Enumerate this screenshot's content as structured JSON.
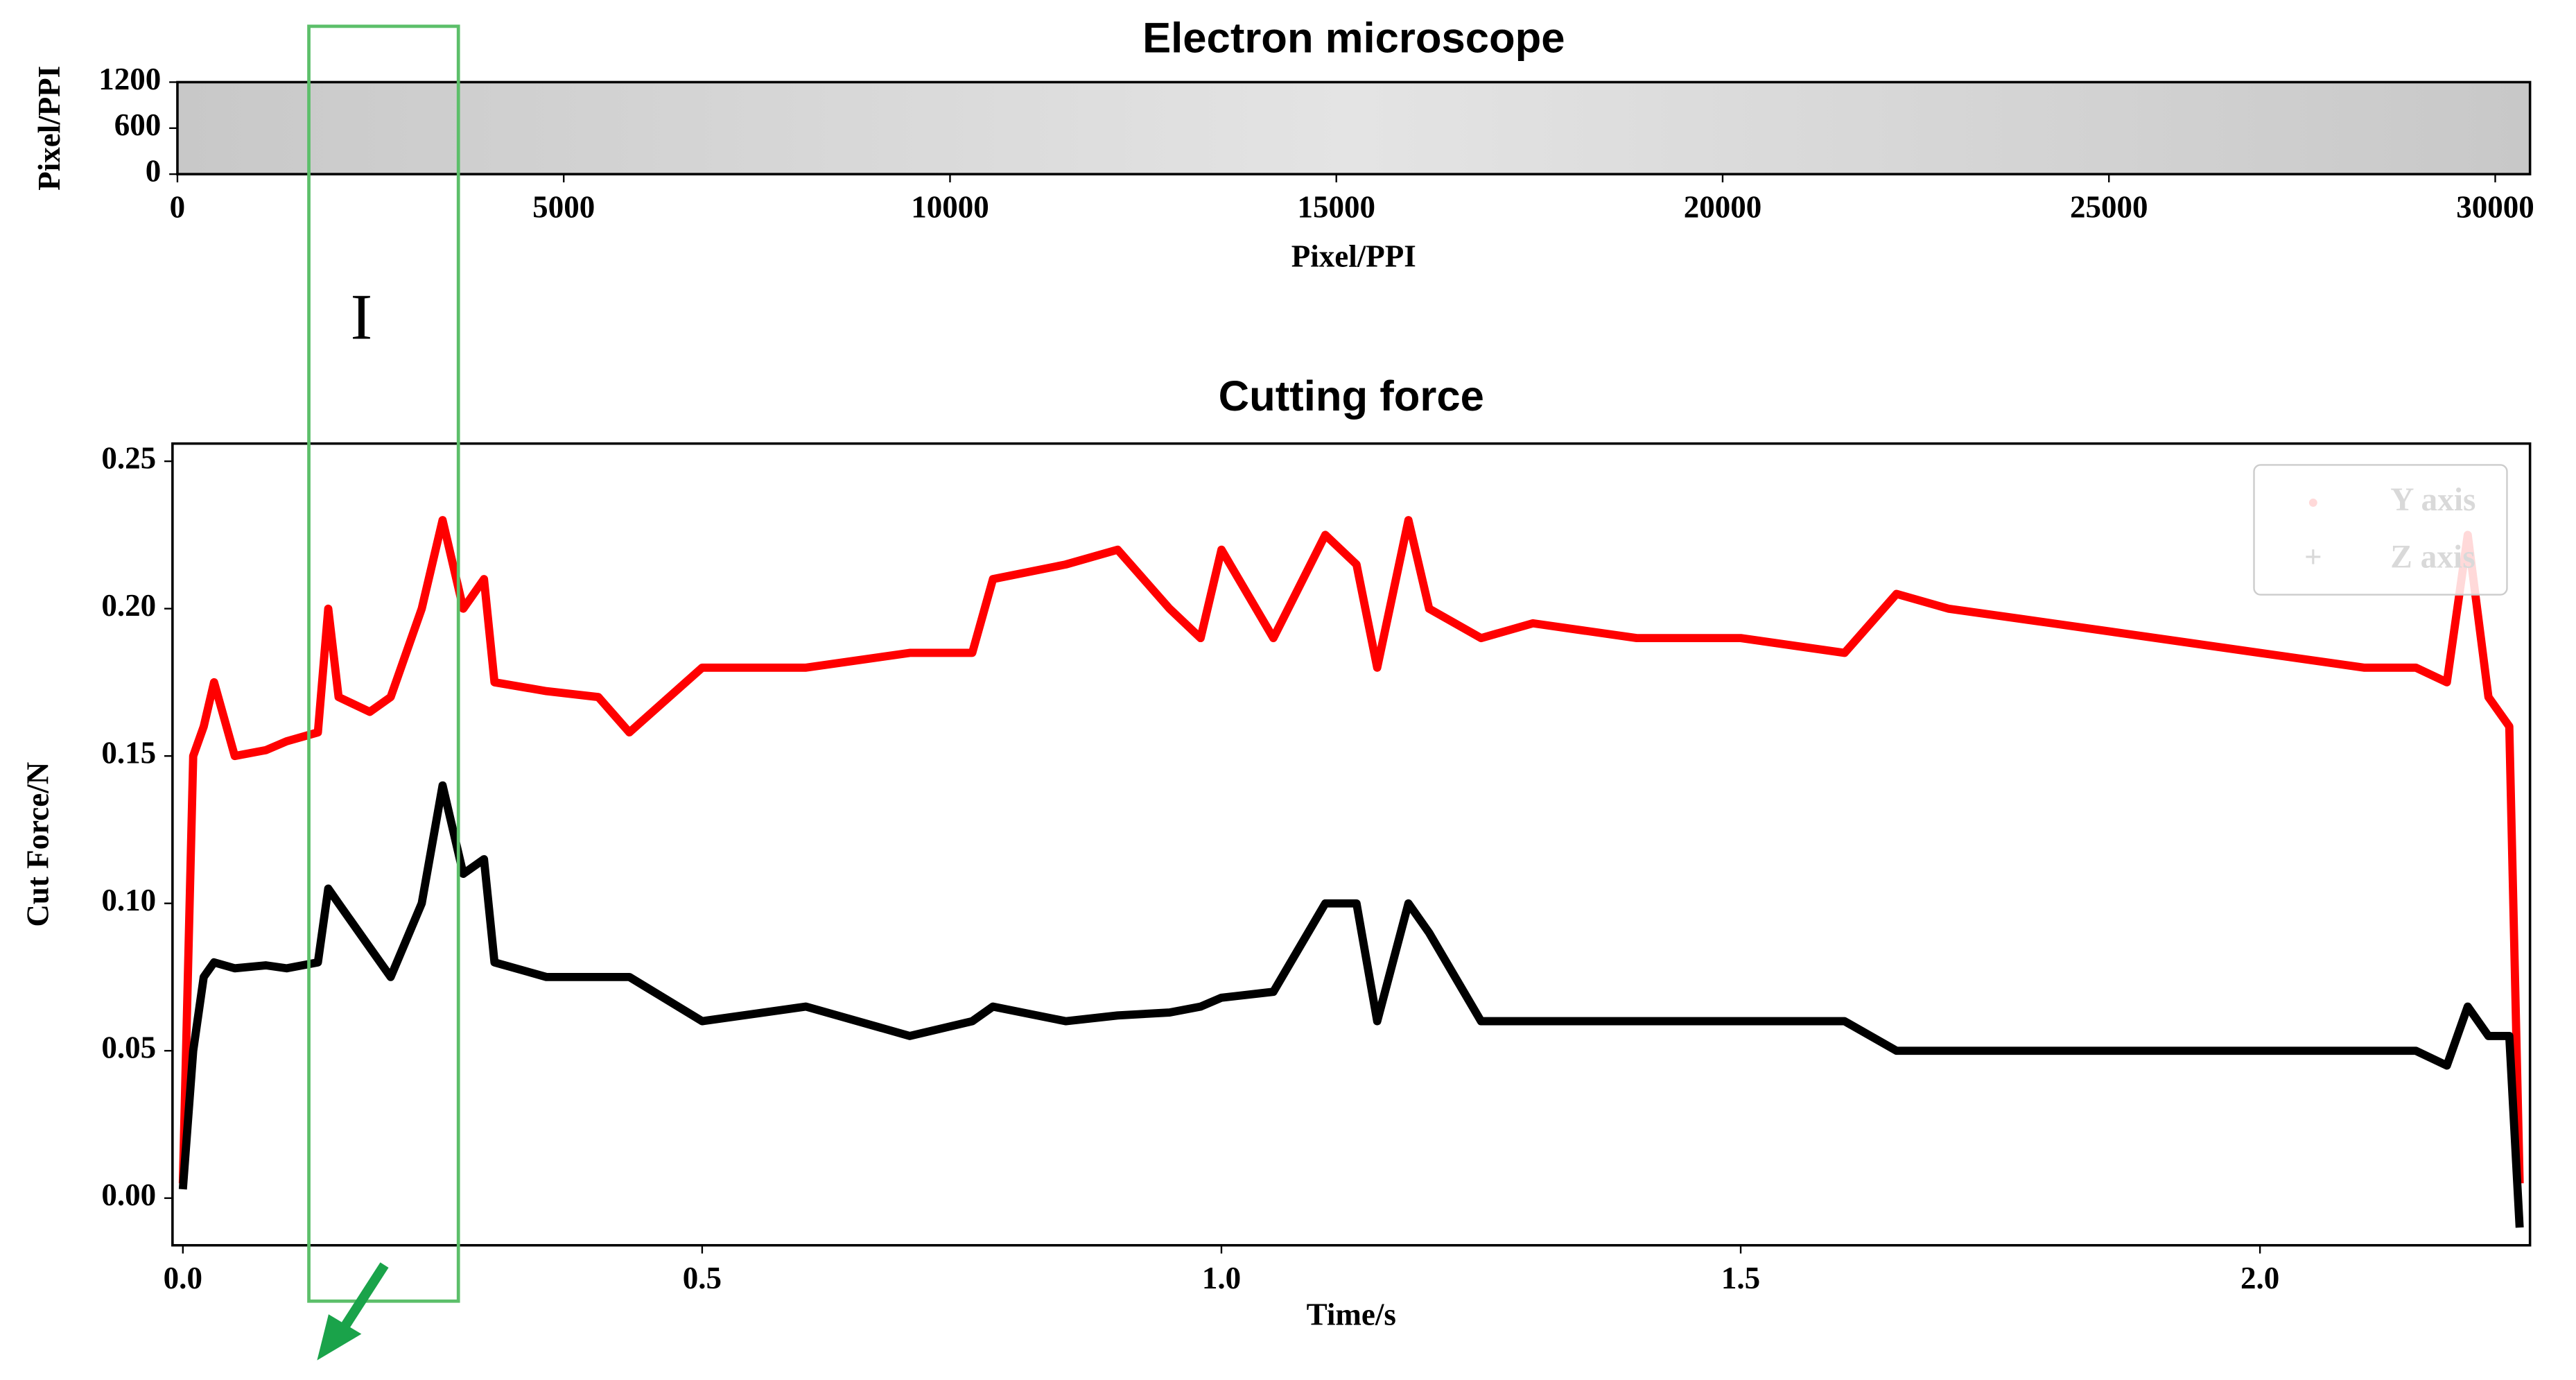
{
  "chart_data": [
    {
      "type": "image",
      "title": "Electron microscope",
      "xlabel": "Pixel/PPI",
      "ylabel": "Pixel/PPI",
      "xlim": [
        0,
        30450
      ],
      "xticks": [
        0,
        5000,
        10000,
        15000,
        20000,
        25000,
        30000
      ],
      "ylim": [
        0,
        1200
      ],
      "yticks": [
        0,
        600,
        1200
      ]
    },
    {
      "type": "line",
      "title": "Cutting force",
      "xlabel": "Time/s",
      "ylabel": "Cut Force/N",
      "annotations": [
        "I"
      ],
      "legend": "upper right",
      "x": [
        0,
        0.01,
        0.02,
        0.03,
        0.05,
        0.08,
        0.1,
        0.13,
        0.14,
        0.15,
        0.18,
        0.2,
        0.23,
        0.25,
        0.27,
        0.29,
        0.3,
        0.35,
        0.4,
        0.43,
        0.5,
        0.6,
        0.7,
        0.76,
        0.78,
        0.85,
        0.9,
        0.95,
        0.98,
        1.0,
        1.05,
        1.1,
        1.13,
        1.15,
        1.18,
        1.2,
        1.25,
        1.3,
        1.4,
        1.5,
        1.6,
        1.65,
        1.7,
        1.8,
        1.9,
        2.0,
        2.1,
        2.15,
        2.18,
        2.2,
        2.22,
        2.24,
        2.25
      ],
      "series": [
        {
          "name": "Y axis",
          "color": "#ff0000",
          "values": [
            0.005,
            0.15,
            0.16,
            0.175,
            0.15,
            0.152,
            0.155,
            0.158,
            0.2,
            0.17,
            0.165,
            0.17,
            0.2,
            0.23,
            0.2,
            0.21,
            0.175,
            0.172,
            0.17,
            0.158,
            0.18,
            0.18,
            0.185,
            0.185,
            0.21,
            0.215,
            0.22,
            0.2,
            0.19,
            0.22,
            0.19,
            0.225,
            0.215,
            0.18,
            0.23,
            0.2,
            0.19,
            0.195,
            0.19,
            0.19,
            0.185,
            0.205,
            0.2,
            0.195,
            0.19,
            0.185,
            0.18,
            0.18,
            0.175,
            0.225,
            0.17,
            0.16,
            0.005
          ]
        },
        {
          "name": "Z axis",
          "color": "#000000",
          "values": [
            0.003,
            0.05,
            0.075,
            0.08,
            0.078,
            0.079,
            0.078,
            0.08,
            0.105,
            0.1,
            0.085,
            0.075,
            0.1,
            0.14,
            0.11,
            0.115,
            0.08,
            0.075,
            0.075,
            0.075,
            0.06,
            0.065,
            0.055,
            0.06,
            0.065,
            0.06,
            0.062,
            0.063,
            0.065,
            0.068,
            0.07,
            0.1,
            0.1,
            0.06,
            0.1,
            0.09,
            0.06,
            0.06,
            0.06,
            0.06,
            0.06,
            0.05,
            0.05,
            0.05,
            0.05,
            0.05,
            0.05,
            0.05,
            0.045,
            0.065,
            0.055,
            0.055,
            -0.01
          ]
        }
      ],
      "xlim": [
        -0.01,
        2.26
      ],
      "xticks": [
        {
          "value": 0,
          "label": "0.0"
        },
        0.5,
        {
          "value": 1,
          "label": "1.0"
        },
        1.5,
        {
          "value": 2,
          "label": "2.0"
        }
      ],
      "ylim": [
        -0.016,
        0.256
      ],
      "yticks": [
        {
          "value": 0,
          "label": "0.00"
        },
        0.05,
        {
          "value": 0.1,
          "label": "0.10"
        },
        0.15,
        {
          "value": 0.2,
          "label": "0.20"
        },
        0.25
      ]
    }
  ]
}
